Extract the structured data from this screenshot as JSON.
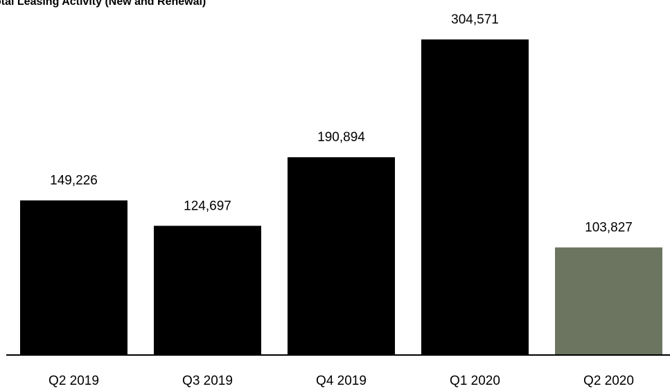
{
  "chart_data": {
    "type": "bar",
    "title": "otal Leasing Activity (New and Renewal)",
    "categories": [
      "Q2 2019",
      "Q3 2019",
      "Q4 2019",
      "Q1 2020",
      "Q2 2020"
    ],
    "values": [
      149226,
      124697,
      190894,
      304571,
      103827
    ],
    "value_labels": [
      "149,226",
      "124,697",
      "190,894",
      "304,571",
      "103,827"
    ],
    "bar_colors": [
      "#000000",
      "#000000",
      "#000000",
      "#000000",
      "#6b7560"
    ],
    "ylim": [
      0,
      304571
    ],
    "grid": false,
    "legend": "none"
  }
}
